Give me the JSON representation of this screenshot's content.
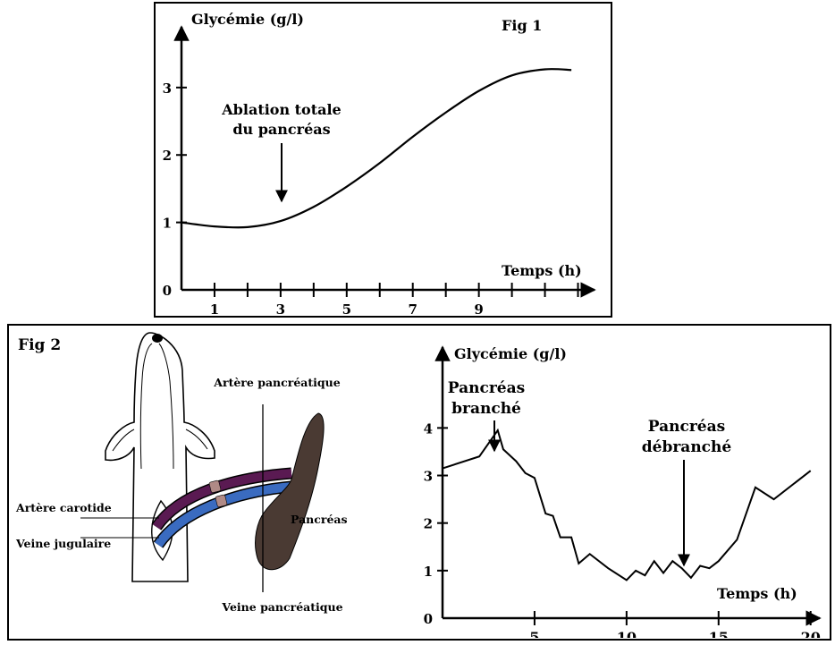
{
  "fig1": {
    "label": "Fig 1",
    "ylabel": "Glycémie (g/l)",
    "xlabel": "Temps (h)",
    "annotation_lines": [
      "Ablation totale",
      "du pancréas"
    ]
  },
  "fig2": {
    "label": "Fig 2",
    "ylabel": "Glycémie (g/l)",
    "xlabel": "Temps (h)",
    "annotation1_lines": [
      "Pancréas",
      "branché"
    ],
    "annotation2_lines": [
      "Pancréas",
      "débranché"
    ],
    "diagram": {
      "artere_pancreatique": "Artère pancréatique",
      "artere_carotide": "Artère carotide",
      "veine_jugulaire": "Veine jugulaire",
      "pancreas": "Pancréas",
      "veine_pancreatique": "Veine pancréatique"
    }
  },
  "colors": {
    "artery": "#5a1a52",
    "vein": "#3a6bc0",
    "pancreas": "#4a3a33",
    "clamp": "#b08a86"
  },
  "chart_data": [
    {
      "type": "line",
      "x_ticks": [
        1,
        3,
        5,
        7,
        9
      ],
      "y_ticks": [
        1,
        2,
        3
      ],
      "origin_label": "0",
      "xlim": [
        0,
        12.5
      ],
      "ylim": [
        0,
        3.9
      ],
      "series": [
        {
          "x": [
            0,
            1,
            2,
            3,
            4,
            5,
            6,
            7,
            8,
            9,
            10,
            11,
            11.8
          ],
          "y": [
            1.0,
            0.94,
            0.93,
            1.02,
            1.23,
            1.53,
            1.88,
            2.27,
            2.63,
            2.95,
            3.18,
            3.27,
            3.26
          ]
        }
      ],
      "annotations": [
        {
          "text": "Ablation totale du pancréas",
          "x": 3
        }
      ]
    },
    {
      "type": "line",
      "x_ticks": [
        5,
        10,
        15,
        20
      ],
      "y_ticks": [
        1,
        2,
        3,
        4
      ],
      "origin_label": "0",
      "xlim": [
        0,
        20.5
      ],
      "ylim": [
        0,
        5.7
      ],
      "series": [
        {
          "x": [
            0,
            2,
            3,
            3.3,
            4,
            4.5,
            5,
            5.6,
            6,
            6.4,
            7,
            7.4,
            8,
            9,
            10,
            10.5,
            11,
            11.5,
            12,
            12.5,
            13,
            13.5,
            14,
            14.5,
            15,
            16,
            17,
            18,
            20
          ],
          "y": [
            3.15,
            3.4,
            3.95,
            3.55,
            3.3,
            3.05,
            2.95,
            2.2,
            2.15,
            1.7,
            1.7,
            1.15,
            1.35,
            1.05,
            0.8,
            1.0,
            0.9,
            1.2,
            0.95,
            1.2,
            1.05,
            0.85,
            1.1,
            1.05,
            1.2,
            1.65,
            2.75,
            2.5,
            3.1
          ]
        }
      ],
      "annotations": [
        {
          "text": "Pancréas branché",
          "x": 3
        },
        {
          "text": "Pancréas débranché",
          "x": 13.5
        }
      ]
    }
  ]
}
